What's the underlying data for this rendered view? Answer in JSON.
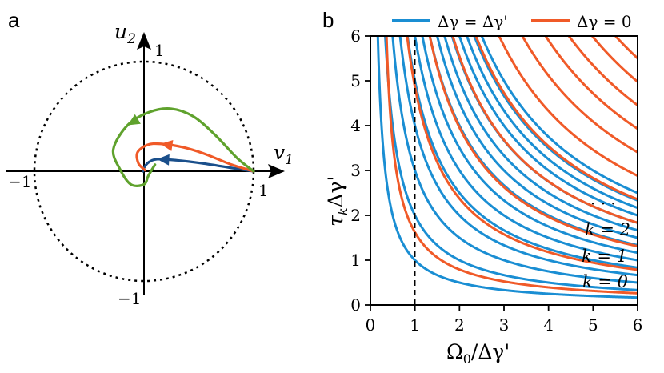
{
  "panel_a": {
    "label": "a",
    "axis_x_name": "v",
    "axis_x_sub": "1",
    "axis_y_name": "u",
    "axis_y_sub": "2",
    "tick_pos_x": "1",
    "tick_neg_x": "−1",
    "tick_pos_y": "1",
    "tick_neg_y": "−1",
    "circle_radius": 1,
    "trajectories": [
      {
        "color": "#1a4f8b",
        "points": [
          [
            1,
            0
          ],
          [
            0.8,
            0.03
          ],
          [
            0.55,
            0.07
          ],
          [
            0.3,
            0.1
          ],
          [
            0.12,
            0.11
          ],
          [
            0.04,
            0.08
          ],
          [
            0.0,
            0.03
          ],
          [
            -0.01,
            0.0
          ]
        ]
      },
      {
        "color": "#f05a28",
        "points": [
          [
            1,
            0
          ],
          [
            0.8,
            0.06
          ],
          [
            0.55,
            0.16
          ],
          [
            0.35,
            0.22
          ],
          [
            0.15,
            0.25
          ],
          [
            0.03,
            0.24
          ],
          [
            -0.06,
            0.17
          ],
          [
            -0.05,
            0.07
          ],
          [
            0.01,
            0.01
          ]
        ]
      },
      {
        "color": "#5fa22d",
        "points": [
          [
            1,
            0
          ],
          [
            0.85,
            0.12
          ],
          [
            0.65,
            0.33
          ],
          [
            0.45,
            0.5
          ],
          [
            0.25,
            0.57
          ],
          [
            0.05,
            0.54
          ],
          [
            -0.15,
            0.42
          ],
          [
            -0.28,
            0.2
          ],
          [
            -0.22,
            0.02
          ],
          [
            -0.12,
            -0.12
          ],
          [
            0.0,
            -0.12
          ],
          [
            0.04,
            -0.04
          ],
          [
            0.1,
            0.06
          ]
        ]
      }
    ]
  },
  "panel_b": {
    "label": "b"
  },
  "chart_data": {
    "type": "line",
    "xlabel": "Ω0/Δγ'",
    "ylabel": "τkΔγ'",
    "xlim": [
      0,
      6
    ],
    "ylim": [
      0,
      6
    ],
    "xticks": [
      "0",
      "1",
      "2",
      "3",
      "4",
      "5",
      "6"
    ],
    "yticks": [
      "0",
      "1",
      "2",
      "3",
      "4",
      "5",
      "6"
    ],
    "grid": false,
    "legend_position": "top",
    "vline_x": 1,
    "series": [
      {
        "name": "Δγ = Δγ'",
        "color": "#1a8ed3",
        "formula": "tau_k = (k+1)/x",
        "k_values": [
          0,
          1,
          2,
          3,
          4,
          5,
          6,
          7,
          8,
          9,
          10,
          11,
          12,
          13,
          14
        ]
      },
      {
        "name": "Δγ = 0",
        "color": "#f05a28",
        "formula": "tau_k = (k+1/2)*pi/sqrt(x^2 - 1/16)",
        "k_values": [
          0,
          1,
          2,
          3,
          4,
          5,
          6,
          7,
          8,
          9,
          10,
          11,
          12,
          13,
          14
        ]
      }
    ],
    "annotations": [
      "k = 0",
      "k = 1",
      "k = 2",
      "· · ·"
    ]
  }
}
